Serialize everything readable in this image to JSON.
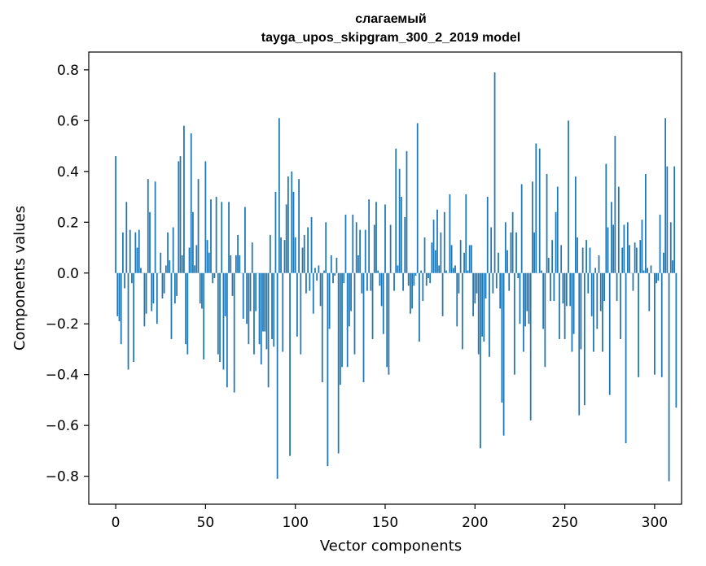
{
  "chart_data": {
    "type": "bar",
    "title": "слагаемый",
    "subtitle": "tayga_upos_skipgram_300_2_2019 model",
    "xlabel": "Vector components",
    "ylabel": "Components values",
    "xlim": [
      -15,
      315
    ],
    "ylim": [
      -0.91,
      0.87
    ],
    "xticks": [
      0,
      50,
      100,
      150,
      200,
      250,
      300
    ],
    "xtick_labels": [
      "0",
      "50",
      "100",
      "150",
      "200",
      "250",
      "300"
    ],
    "yticks": [
      -0.8,
      -0.6,
      -0.4,
      -0.2,
      0.0,
      0.2,
      0.4,
      0.6,
      0.8
    ],
    "ytick_labels": [
      "−0.8",
      "−0.6",
      "−0.4",
      "−0.2",
      "0.0",
      "0.2",
      "0.4",
      "0.6",
      "0.8"
    ],
    "bar_color": "#1f77b4",
    "grid": false,
    "values": [
      0.46,
      -0.17,
      -0.19,
      -0.28,
      0.16,
      -0.06,
      0.28,
      -0.38,
      0.17,
      -0.04,
      -0.35,
      0.16,
      0.1,
      0.17,
      0.02,
      0.0,
      -0.21,
      -0.16,
      0.37,
      0.24,
      -0.15,
      -0.12,
      0.36,
      -0.2,
      0.0,
      0.08,
      -0.1,
      -0.08,
      0.03,
      0.16,
      0.05,
      -0.26,
      0.18,
      -0.12,
      -0.09,
      0.44,
      0.46,
      0.07,
      0.58,
      -0.28,
      -0.32,
      0.1,
      0.55,
      0.24,
      0.03,
      0.11,
      0.37,
      -0.12,
      -0.14,
      -0.34,
      0.44,
      0.13,
      0.08,
      0.29,
      -0.04,
      -0.02,
      0.3,
      -0.32,
      -0.35,
      0.28,
      -0.38,
      -0.17,
      -0.45,
      0.28,
      0.07,
      -0.09,
      -0.47,
      0.07,
      0.15,
      0.07,
      0.0,
      -0.18,
      0.26,
      -0.2,
      -0.28,
      -0.15,
      0.12,
      -0.32,
      -0.15,
      0.0,
      -0.28,
      -0.36,
      -0.23,
      -0.23,
      -0.3,
      -0.45,
      0.15,
      -0.26,
      -0.29,
      0.32,
      -0.81,
      0.61,
      0.14,
      -0.31,
      0.13,
      0.27,
      0.38,
      -0.72,
      0.4,
      0.32,
      0.14,
      -0.25,
      0.37,
      -0.32,
      0.1,
      0.15,
      -0.08,
      0.18,
      -0.07,
      0.22,
      -0.16,
      0.02,
      -0.03,
      0.03,
      -0.13,
      -0.43,
      0.01,
      0.2,
      -0.76,
      -0.22,
      0.07,
      -0.04,
      -0.01,
      0.06,
      -0.71,
      -0.44,
      -0.37,
      -0.04,
      0.23,
      -0.37,
      -0.21,
      -0.15,
      0.23,
      -0.32,
      0.2,
      0.07,
      0.17,
      -0.08,
      -0.43,
      0.17,
      -0.07,
      0.29,
      -0.07,
      -0.26,
      0.19,
      0.28,
      0.01,
      -0.05,
      -0.13,
      -0.24,
      0.27,
      -0.37,
      -0.4,
      0.19,
      0.0,
      -0.07,
      0.49,
      0.03,
      0.41,
      0.3,
      -0.07,
      0.22,
      0.48,
      -0.05,
      -0.16,
      -0.14,
      -0.05,
      -0.01,
      0.59,
      -0.27,
      0.01,
      -0.11,
      0.14,
      -0.05,
      -0.02,
      -0.04,
      0.12,
      0.21,
      0.09,
      0.25,
      0.03,
      0.16,
      -0.17,
      0.24,
      0.01,
      0.0,
      0.31,
      0.11,
      0.02,
      0.03,
      -0.21,
      -0.08,
      0.13,
      -0.3,
      0.08,
      0.31,
      0.01,
      0.11,
      0.11,
      -0.17,
      -0.12,
      -0.08,
      -0.32,
      -0.69,
      -0.25,
      -0.27,
      -0.1,
      0.3,
      -0.33,
      0.18,
      -0.08,
      0.79,
      -0.06,
      0.08,
      -0.14,
      -0.51,
      -0.64,
      0.2,
      0.09,
      -0.07,
      0.16,
      0.24,
      -0.4,
      0.16,
      -0.02,
      -0.2,
      0.35,
      -0.31,
      -0.21,
      -0.15,
      -0.2,
      -0.58,
      0.36,
      0.16,
      0.51,
      0.0,
      0.49,
      0.01,
      -0.22,
      -0.37,
      0.39,
      0.06,
      -0.11,
      0.13,
      -0.11,
      0.24,
      0.34,
      -0.26,
      0.11,
      -0.12,
      -0.26,
      -0.13,
      0.6,
      -0.13,
      -0.31,
      -0.24,
      0.38,
      0.14,
      -0.56,
      -0.3,
      0.1,
      -0.52,
      0.13,
      -0.08,
      0.1,
      -0.17,
      -0.31,
      0.02,
      -0.22,
      0.07,
      -0.15,
      -0.31,
      -0.11,
      0.43,
      0.18,
      -0.48,
      0.28,
      0.19,
      0.54,
      -0.11,
      0.34,
      -0.26,
      0.1,
      0.19,
      -0.67,
      0.2,
      0.11,
      0.0,
      -0.07,
      0.12,
      0.1,
      -0.41,
      0.13,
      0.21,
      0.01,
      0.39,
      0.02,
      -0.15,
      0.03,
      0.0,
      -0.4,
      -0.04,
      -0.03,
      0.23,
      -0.41,
      0.08,
      0.61,
      0.42,
      -0.82,
      0.2,
      0.05,
      0.42,
      -0.53
    ]
  }
}
